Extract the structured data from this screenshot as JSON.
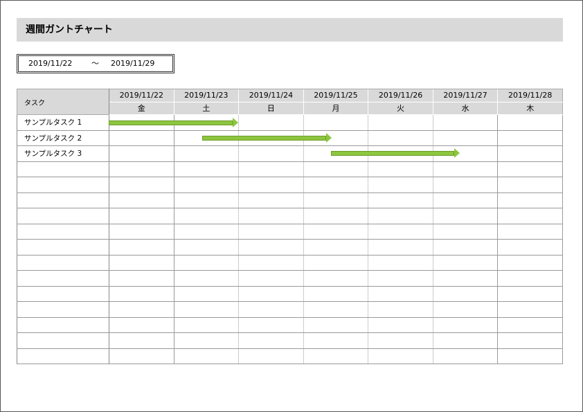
{
  "title": "週間ガントチャート",
  "period": {
    "start": "2019/11/22",
    "separator": "～",
    "end": "2019/11/29"
  },
  "table": {
    "task_header": "タスク",
    "days": [
      {
        "date": "2019/11/22",
        "weekday": "金"
      },
      {
        "date": "2019/11/23",
        "weekday": "土"
      },
      {
        "date": "2019/11/24",
        "weekday": "日"
      },
      {
        "date": "2019/11/25",
        "weekday": "月"
      },
      {
        "date": "2019/11/26",
        "weekday": "火"
      },
      {
        "date": "2019/11/27",
        "weekday": "水"
      },
      {
        "date": "2019/11/28",
        "weekday": "木"
      }
    ],
    "tasks": [
      "サンプルタスク 1",
      "サンプルタスク 2",
      "サンプルタスク 3",
      "",
      "",
      "",
      "",
      "",
      "",
      "",
      "",
      "",
      "",
      "",
      "",
      ""
    ]
  },
  "colors": {
    "bar": "#8dc63f",
    "header": "#d9d9d9"
  }
}
